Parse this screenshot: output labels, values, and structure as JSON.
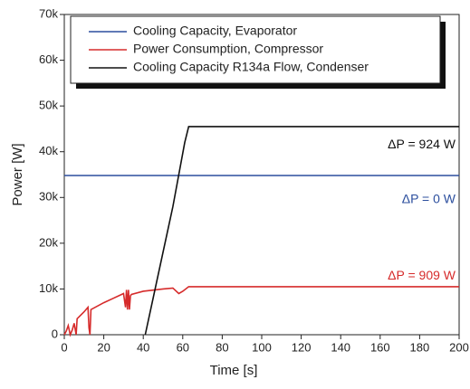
{
  "chart_data": {
    "type": "line",
    "xlabel": "Time [s]",
    "ylabel": "Power [W]",
    "xlim": [
      0,
      200
    ],
    "xticks": [
      0,
      20,
      40,
      60,
      80,
      100,
      120,
      140,
      160,
      180,
      200
    ],
    "ylim": [
      0,
      70000
    ],
    "yticks": [
      0,
      {
        "value": 10000,
        "label": "10k"
      },
      {
        "value": 20000,
        "label": "20k"
      },
      {
        "value": 30000,
        "label": "30k"
      },
      {
        "value": 40000,
        "label": "40k"
      },
      {
        "value": 50000,
        "label": "50k"
      },
      {
        "value": 60000,
        "label": "60k"
      },
      {
        "value": 70000,
        "label": "70k"
      }
    ],
    "series": [
      {
        "name": "Cooling Capacity, Evaporator",
        "color": "#2c4f9e",
        "x": [
          0,
          200
        ],
        "values": [
          34800,
          34800
        ]
      },
      {
        "name": "Power Consumption, Compressor",
        "color": "#d62b2b",
        "x": [
          0,
          1,
          2,
          3,
          4,
          5,
          6,
          6.5,
          10,
          12,
          12.5,
          13,
          13.5,
          20,
          25,
          30,
          31,
          31.5,
          32,
          32.5,
          33,
          33.5,
          34,
          40,
          50,
          55,
          58,
          60,
          63,
          200
        ],
        "values": [
          0,
          800,
          2000,
          0,
          1000,
          2500,
          0,
          3500,
          5000,
          6000,
          1500,
          0,
          5500,
          7000,
          8000,
          9000,
          6000,
          9800,
          5500,
          9800,
          5500,
          8500,
          8800,
          9500,
          10000,
          10200,
          9000,
          9500,
          10500,
          10500
        ]
      },
      {
        "name": "Cooling Capacity R134a Flow, Condenser",
        "color": "#111111",
        "x": [
          41,
          45,
          50,
          55,
          58,
          61,
          63,
          200
        ],
        "values": [
          0,
          8000,
          18000,
          28000,
          35000,
          42000,
          45500,
          45500
        ]
      }
    ],
    "annotations": [
      {
        "text": "ΔP = 924 W",
        "x": 200,
        "y": 41500,
        "color": "#111111"
      },
      {
        "text": "ΔP = 0 W",
        "x": 200,
        "y": 29500,
        "color": "#2c4f9e"
      },
      {
        "text": "ΔP = 909 W",
        "x": 200,
        "y": 12800,
        "color": "#d62b2b"
      }
    ]
  }
}
